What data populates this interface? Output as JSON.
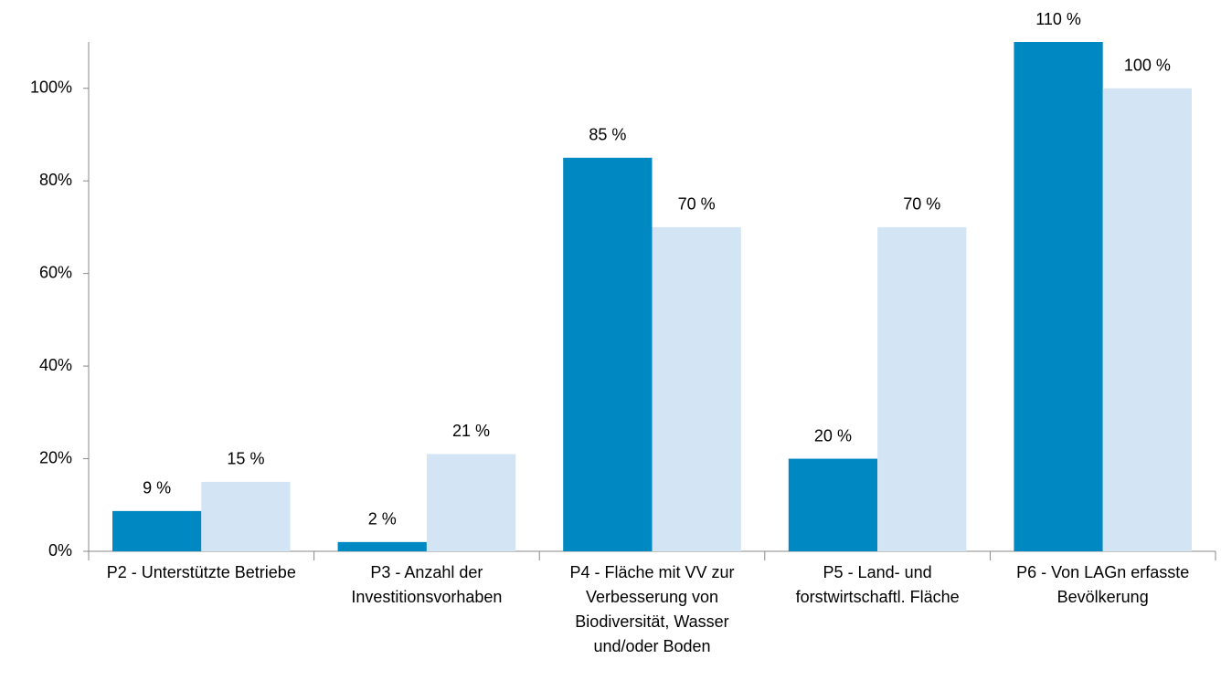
{
  "chart_data": {
    "type": "bar",
    "categories": [
      "P2 - Unterstützte Betriebe",
      "P3 - Anzahl der Investitionsvorhaben",
      "P4 - Fläche mit VV zur Verbesserung von Biodiversität, Wasser und/oder Boden",
      "P5 - Land- und forstwirtschaftl. Fläche",
      "P6 - Von LAGn erfasste Bevölkerung"
    ],
    "series": [
      {
        "color": "#0088c2",
        "values": [
          8.7,
          2,
          85,
          20,
          110
        ],
        "value_labels": [
          "9 %",
          "2 %",
          "85 %",
          "20 %",
          "110 %"
        ]
      },
      {
        "color": "#d3e5f5",
        "values": [
          15,
          21,
          70,
          70,
          100
        ],
        "value_labels": [
          "15 %",
          "21 %",
          "70 %",
          "70 %",
          "100 %"
        ]
      }
    ],
    "ylim": [
      0,
      110
    ],
    "yticks": [
      {
        "value": 0,
        "label": "0%"
      },
      {
        "value": 20,
        "label": "20%"
      },
      {
        "value": 40,
        "label": "40%"
      },
      {
        "value": 60,
        "label": "60%"
      },
      {
        "value": 80,
        "label": "80%"
      },
      {
        "value": 100,
        "label": "100%"
      }
    ]
  }
}
